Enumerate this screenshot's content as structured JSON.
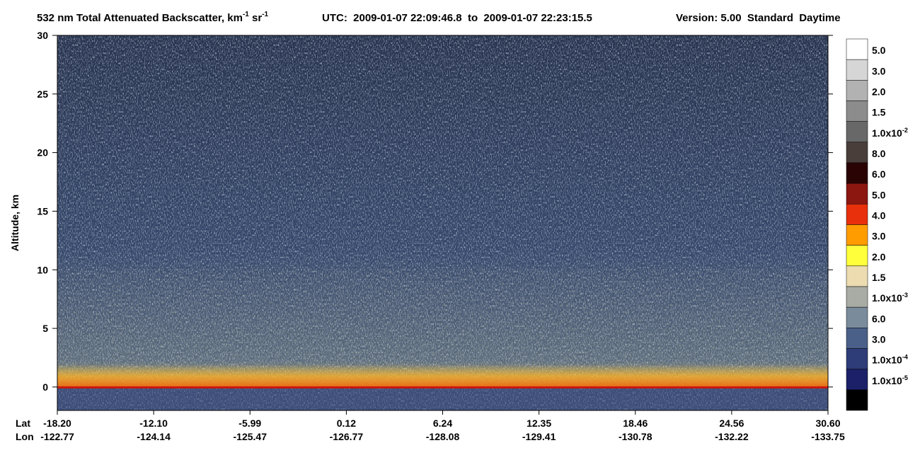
{
  "chart_data": {
    "type": "heatmap",
    "title": [
      "532 nm Total Attenuated Backscatter, km",
      "-1",
      " sr",
      "-1"
    ],
    "subtitle": "UTC:  2009-01-07 22:09:46.8  to  2009-01-07 22:23:15.5",
    "version": "Version: 5.00  Standard  Daytime",
    "y_label": "Altitude, km",
    "ylim": [
      -2,
      30
    ],
    "yticks": [
      0,
      5,
      10,
      15,
      20,
      25,
      30
    ],
    "x_row_labels": [
      "Lat",
      "Lon"
    ],
    "lat": [
      "-18.20",
      "-12.10",
      "-5.99",
      "0.12",
      "6.24",
      "12.35",
      "18.46",
      "24.56",
      "30.60"
    ],
    "lon": [
      "-122.77",
      "-124.14",
      "-125.47",
      "-126.77",
      "-128.08",
      "-129.41",
      "-130.78",
      "-132.22",
      "-133.75"
    ],
    "colorbar": {
      "colors": [
        "#ffffff",
        "#d6d6d6",
        "#b2b2b2",
        "#8c8c8c",
        "#686868",
        "#4a3e3a",
        "#2a0404",
        "#8c1610",
        "#e8300c",
        "#ff9c00",
        "#ffff3c",
        "#ecdcb0",
        "#a8aca4",
        "#7a8c9c",
        "#4a6088",
        "#2e3c78",
        "#1c2068",
        "#000000"
      ],
      "labels": [
        "5.0",
        "3.0",
        "2.0",
        "1.5",
        {
          "base": "1.0x10",
          "exp": "-2"
        },
        "8.0",
        "6.0",
        "5.0",
        "4.0",
        "3.0",
        "2.0",
        "1.5",
        {
          "base": "1.0x10",
          "exp": "-3"
        },
        "6.0",
        "3.0",
        {
          "base": "1.0x10",
          "exp": "-4"
        },
        {
          "base": "1.0x10",
          "exp": "-5"
        }
      ]
    }
  }
}
